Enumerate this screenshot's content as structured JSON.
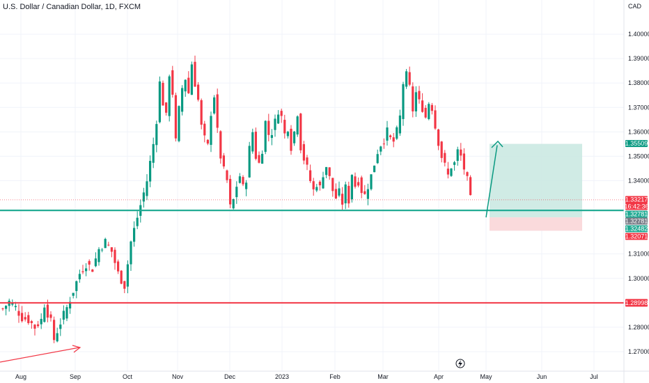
{
  "chart_data": {
    "type": "candlestick",
    "title": "U.S. Dollar / Canadian Dollar, 1D, FXCM",
    "currency_label": "CAD",
    "ylim": [
      1.262,
      1.414
    ],
    "y_ticks": [
      "1.40000",
      "1.39000",
      "1.38000",
      "1.37000",
      "1.36000",
      "1.35000",
      "1.34000",
      "1.31000",
      "1.30000",
      "1.28000",
      "1.27000"
    ],
    "x_labels": [
      "Aug",
      "Sep",
      "Oct",
      "Nov",
      "Dec",
      "2023",
      "Feb",
      "Mar",
      "Apr",
      "May",
      "Jun",
      "Jul"
    ],
    "close_path": [
      [
        0,
        1.2875
      ],
      [
        2,
        1.2905
      ],
      [
        4,
        1.288
      ],
      [
        6,
        1.284
      ],
      [
        8,
        1.283
      ],
      [
        10,
        1.28
      ],
      [
        12,
        1.283
      ],
      [
        13,
        1.2895
      ],
      [
        15,
        1.282
      ],
      [
        16,
        1.275
      ],
      [
        18,
        1.282
      ],
      [
        20,
        1.288
      ],
      [
        22,
        1.295
      ],
      [
        24,
        1.302
      ],
      [
        26,
        1.306
      ],
      [
        28,
        1.304
      ],
      [
        30,
        1.312
      ],
      [
        32,
        1.315
      ],
      [
        34,
        1.311
      ],
      [
        36,
        1.302
      ],
      [
        38,
        1.297
      ],
      [
        40,
        1.315
      ],
      [
        41,
        1.32
      ],
      [
        43,
        1.33
      ],
      [
        45,
        1.34
      ],
      [
        47,
        1.355
      ],
      [
        48,
        1.365
      ],
      [
        49,
        1.38
      ],
      [
        50,
        1.372
      ],
      [
        51,
        1.366
      ],
      [
        52,
        1.384
      ],
      [
        53,
        1.376
      ],
      [
        54,
        1.356
      ],
      [
        55,
        1.369
      ],
      [
        56,
        1.378
      ],
      [
        57,
        1.382
      ],
      [
        58,
        1.376
      ],
      [
        59,
        1.388
      ],
      [
        60,
        1.38
      ],
      [
        61,
        1.373
      ],
      [
        62,
        1.362
      ],
      [
        63,
        1.357
      ],
      [
        64,
        1.354
      ],
      [
        65,
        1.368
      ],
      [
        66,
        1.375
      ],
      [
        67,
        1.36
      ],
      [
        68,
        1.35
      ],
      [
        69,
        1.344
      ],
      [
        70,
        1.34
      ],
      [
        71,
        1.329
      ],
      [
        72,
        1.332
      ],
      [
        73,
        1.338
      ],
      [
        74,
        1.342
      ],
      [
        75,
        1.337
      ],
      [
        76,
        1.341
      ],
      [
        77,
        1.353
      ],
      [
        78,
        1.36
      ],
      [
        79,
        1.35
      ],
      [
        80,
        1.347
      ],
      [
        81,
        1.353
      ],
      [
        82,
        1.364
      ],
      [
        83,
        1.359
      ],
      [
        84,
        1.36
      ],
      [
        85,
        1.364
      ],
      [
        86,
        1.369
      ],
      [
        87,
        1.366
      ],
      [
        88,
        1.359
      ],
      [
        89,
        1.362
      ],
      [
        90,
        1.354
      ],
      [
        91,
        1.36
      ],
      [
        92,
        1.368
      ],
      [
        93,
        1.354
      ],
      [
        94,
        1.349
      ],
      [
        95,
        1.345
      ],
      [
        96,
        1.34
      ],
      [
        97,
        1.336
      ],
      [
        98,
        1.339
      ],
      [
        99,
        1.337
      ],
      [
        100,
        1.343
      ],
      [
        101,
        1.346
      ],
      [
        102,
        1.341
      ],
      [
        103,
        1.336
      ],
      [
        104,
        1.333
      ],
      [
        105,
        1.335
      ],
      [
        106,
        1.331
      ],
      [
        107,
        1.337
      ],
      [
        108,
        1.332
      ],
      [
        109,
        1.343
      ],
      [
        110,
        1.338
      ],
      [
        111,
        1.34
      ],
      [
        112,
        1.336
      ],
      [
        113,
        1.334
      ],
      [
        114,
        1.338
      ],
      [
        115,
        1.342
      ],
      [
        116,
        1.347
      ],
      [
        117,
        1.352
      ],
      [
        118,
        1.355
      ],
      [
        119,
        1.357
      ],
      [
        120,
        1.36
      ],
      [
        121,
        1.357
      ],
      [
        122,
        1.356
      ],
      [
        123,
        1.36
      ],
      [
        124,
        1.366
      ],
      [
        125,
        1.38
      ],
      [
        126,
        1.383
      ],
      [
        127,
        1.378
      ],
      [
        128,
        1.369
      ],
      [
        129,
        1.376
      ],
      [
        130,
        1.372
      ],
      [
        131,
        1.37
      ],
      [
        132,
        1.366
      ],
      [
        133,
        1.372
      ],
      [
        134,
        1.37
      ],
      [
        135,
        1.362
      ],
      [
        136,
        1.356
      ],
      [
        137,
        1.35
      ],
      [
        138,
        1.346
      ],
      [
        139,
        1.342
      ],
      [
        140,
        1.346
      ],
      [
        141,
        1.347
      ],
      [
        142,
        1.352
      ],
      [
        143,
        1.35
      ],
      [
        144,
        1.345
      ],
      [
        145,
        1.34
      ],
      [
        146,
        1.3322
      ]
    ],
    "horizontal_levels": [
      {
        "price": 1.28998,
        "color": "#f23645",
        "label": "1.28998"
      },
      {
        "price": 1.32781,
        "color": "#22ab94",
        "label": "1.32781"
      }
    ],
    "price_tags": [
      {
        "price": 1.35509,
        "label": "1.35509",
        "bg": "#089981"
      },
      {
        "price": 1.33217,
        "label": "1.33217",
        "bg": "#f23645"
      },
      {
        "price": 1.3294,
        "label": "16:42:36",
        "bg": "#f23645"
      },
      {
        "price": 1.32781,
        "label": "1.32781",
        "bg": "#22ab94"
      },
      {
        "price": 1.327,
        "label": "1.32781",
        "bg": "#787b86"
      },
      {
        "price": 1.32482,
        "label": "1.32482",
        "bg": "#22ab94"
      },
      {
        "price": 1.32071,
        "label": "1.32071",
        "bg": "#f23645"
      }
    ],
    "position": {
      "entry": 1.325,
      "target": 1.35509,
      "stop": 1.3195
    },
    "colors": {
      "up": "#089981",
      "down": "#f23645",
      "target_zone": "#cbe9e2",
      "stop_zone": "#f9d6d8",
      "arrow_up": "#089981",
      "arrow_low": "#f23645"
    }
  }
}
